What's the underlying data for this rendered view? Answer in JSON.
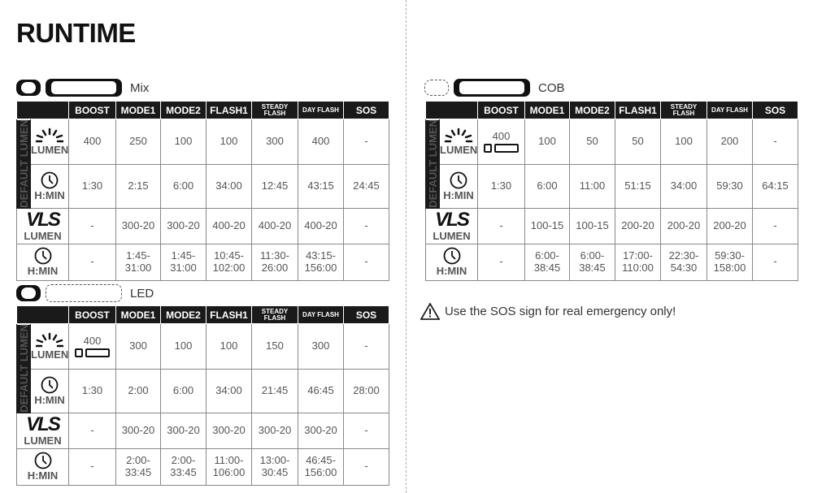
{
  "title": "RUNTIME",
  "columns": [
    "BOOST",
    "MODE1",
    "MODE2",
    "FLASH1",
    "STEADY FLASH",
    "DAY FLASH",
    "SOS"
  ],
  "row_labels": {
    "default": "DEFAULT LUMEN",
    "lumen": "LUMEN",
    "hmin": "H:MIN",
    "vls": "VLS"
  },
  "warning": "Use the SOS sign for real emergency only!",
  "tables": [
    {
      "name": "Mix",
      "lumen": [
        "400",
        "250",
        "100",
        "100",
        "300",
        "400",
        "-"
      ],
      "runtime": [
        "1:30",
        "2:15",
        "6:00",
        "34:00",
        "12:45",
        "43:15",
        "24:45"
      ],
      "vls_lumen": [
        "-",
        "300-20",
        "300-20",
        "400-20",
        "400-20",
        "400-20",
        "-"
      ],
      "vls_runtime": [
        "-",
        "1:45-\n31:00",
        "1:45-\n31:00",
        "10:45-\n102:00",
        "11:30-\n26:00",
        "43:15-\n156:00",
        "-"
      ],
      "boost_note": false
    },
    {
      "name": "COB",
      "lumen": [
        "400",
        "100",
        "50",
        "50",
        "100",
        "200",
        "-"
      ],
      "runtime": [
        "1:30",
        "6:00",
        "11:00",
        "51:15",
        "34:00",
        "59:30",
        "64:15"
      ],
      "vls_lumen": [
        "-",
        "100-15",
        "100-15",
        "200-20",
        "200-20",
        "200-20",
        "-"
      ],
      "vls_runtime": [
        "-",
        "6:00-\n38:45",
        "6:00-\n38:45",
        "17:00-\n110:00",
        "22:30-\n54:30",
        "59:30-\n158:00",
        "-"
      ],
      "boost_note": true
    },
    {
      "name": "LED",
      "lumen": [
        "400",
        "300",
        "100",
        "100",
        "150",
        "300",
        "-"
      ],
      "runtime": [
        "1:30",
        "2:00",
        "6:00",
        "34:00",
        "21:45",
        "46:45",
        "28:00"
      ],
      "vls_lumen": [
        "-",
        "300-20",
        "300-20",
        "300-20",
        "300-20",
        "300-20",
        "-"
      ],
      "vls_runtime": [
        "-",
        "2:00-\n33:45",
        "2:00-\n33:45",
        "11:00-\n106:00",
        "13:00-\n30:45",
        "46:45-\n156:00",
        "-"
      ],
      "boost_note": true
    }
  ]
}
